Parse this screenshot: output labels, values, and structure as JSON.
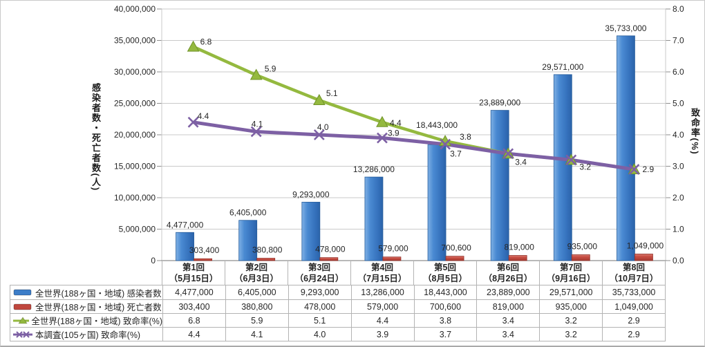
{
  "axes": {
    "left": {
      "title": "感染者数・死亡者数(人)",
      "tick_labels": [
        "40,000,000",
        "35,000,000",
        "30,000,000",
        "25,000,000",
        "20,000,000",
        "15,000,000",
        "10,000,000",
        "5,000,000",
        "0"
      ],
      "range": [
        0,
        40000000
      ]
    },
    "right": {
      "title": "致命率(%)",
      "tick_labels": [
        "8.0",
        "7.0",
        "6.0",
        "5.0",
        "4.0",
        "3.0",
        "2.0",
        "1.0",
        "0.0"
      ],
      "range": [
        0,
        8
      ]
    }
  },
  "chart_data": {
    "type": "combo bar+line",
    "categories": [
      "第1回",
      "第2回",
      "第3回",
      "第4回",
      "第5回",
      "第6回",
      "第7回",
      "第8回"
    ],
    "category_sublabels": [
      "（5月15日）",
      "（6月3日）",
      "（6月24日）",
      "（7月15日）",
      "（8月5日）",
      "（8月26日）",
      "（9月16日）",
      "（10月7日）"
    ],
    "ylim_left": [
      0,
      40000000
    ],
    "ylim_right": [
      0,
      8
    ],
    "grid": true,
    "legend_position": "data-table-left",
    "series": [
      {
        "name": "全世界(188ヶ国・地域) 感染者数",
        "type": "bar",
        "axis": "left",
        "color": "#3c7dc8",
        "values": [
          4477000,
          6405000,
          9293000,
          13286000,
          18443000,
          23889000,
          29571000,
          35733000
        ],
        "labels": [
          "4,477,000",
          "6,405,000",
          "9,293,000",
          "13,286,000",
          "18,443,000",
          "23,889,000",
          "29,571,000",
          "35,733,000"
        ]
      },
      {
        "name": "全世界(188ヶ国・地域) 死亡者数",
        "type": "bar",
        "axis": "left",
        "color": "#c0473e",
        "values": [
          303400,
          380800,
          478000,
          579000,
          700600,
          819000,
          935000,
          1049000
        ],
        "labels": [
          "303,400",
          "380,800",
          "478,000",
          "579,000",
          "700,600",
          "819,000",
          "935,000",
          "1,049,000"
        ]
      },
      {
        "name": "全世界(188ヶ国・地域) 致命率(%)",
        "type": "line",
        "marker": "triangle",
        "axis": "right",
        "color": "#94b93f",
        "values": [
          6.8,
          5.9,
          5.1,
          4.4,
          3.8,
          3.4,
          3.2,
          2.9
        ],
        "labels": [
          "6.8",
          "5.9",
          "5.1",
          "4.4",
          "3.8",
          "3.4",
          "3.2",
          "2.9"
        ]
      },
      {
        "name": "本調査(105ヶ国) 致命率(%)",
        "type": "line",
        "marker": "x",
        "axis": "right",
        "color": "#7d60a4",
        "values": [
          4.4,
          4.1,
          4.0,
          3.9,
          3.7,
          3.4,
          3.2,
          2.9
        ],
        "labels": [
          "4.4",
          "4.1",
          "4.0",
          "3.9",
          "3.7",
          "3.4",
          "3.2",
          "2.9"
        ]
      }
    ]
  }
}
